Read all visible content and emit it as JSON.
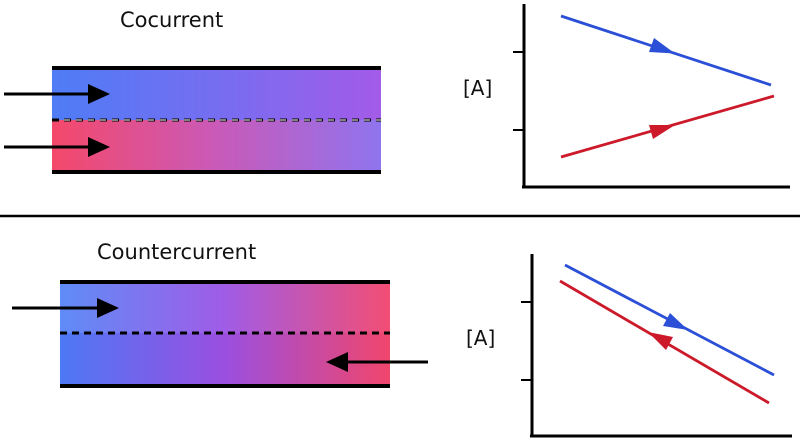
{
  "panels": {
    "cocurrent": {
      "title": "Cocurrent",
      "y_axis_label": "[A]"
    },
    "countercurrent": {
      "title": "Countercurrent",
      "y_axis_label": "[A]"
    }
  },
  "colors": {
    "blue_stream": "#2b4fd6",
    "red_stream": "#cc1a2a",
    "tube_blue": "#5b82f5",
    "tube_purple": "#a45ae6",
    "tube_pink": "#f0557a",
    "outline": "#000000"
  },
  "icons": [
    "flow-arrow",
    "direction-arrowhead"
  ]
}
